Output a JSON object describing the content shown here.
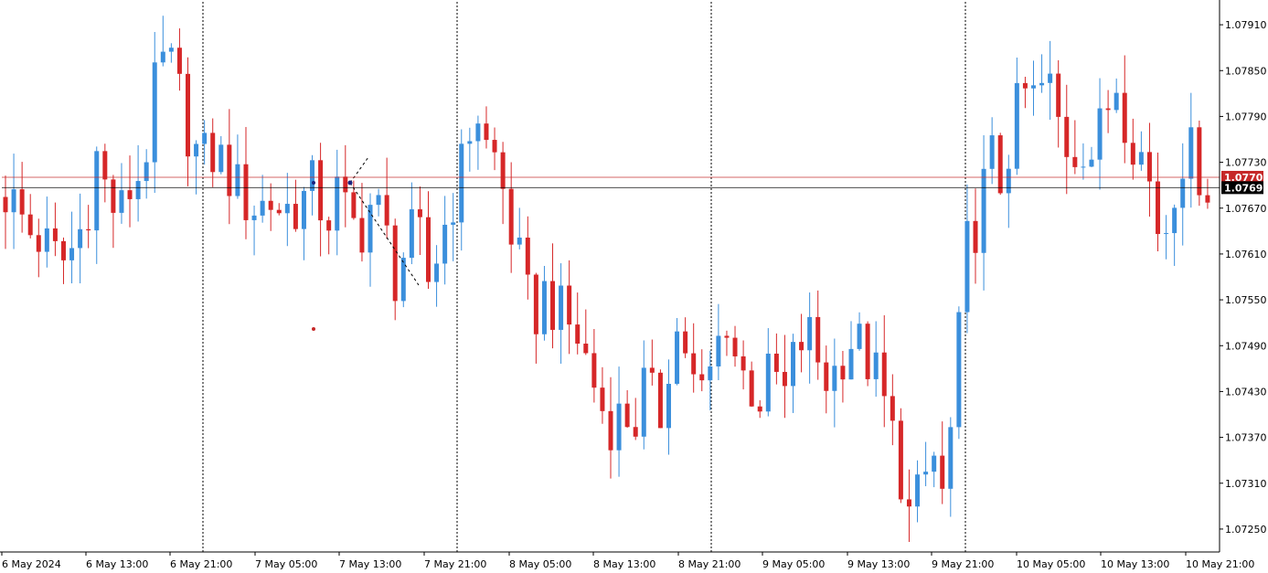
{
  "chart_data": {
    "type": "candlestick",
    "ylim": [
      1.0722,
      1.0794
    ],
    "x_tick_labels": [
      "6 May 2024",
      "6 May 13:00",
      "6 May 21:00",
      "7 May 05:00",
      "7 May 13:00",
      "7 May 21:00",
      "8 May 05:00",
      "8 May 13:00",
      "8 May 21:00",
      "9 May 05:00",
      "9 May 13:00",
      "9 May 21:00",
      "10 May 05:00",
      "10 May 13:00",
      "10 May 21:00"
    ],
    "y_tick_labels": [
      "1.07910",
      "1.07850",
      "1.07790",
      "1.07730",
      "1.07670",
      "1.07610",
      "1.07550",
      "1.07490",
      "1.07430",
      "1.07370",
      "1.07310",
      "1.07250"
    ],
    "y_tick_values": [
      1.0791,
      1.0785,
      1.0779,
      1.0773,
      1.0767,
      1.0761,
      1.0755,
      1.0749,
      1.0743,
      1.0737,
      1.0731,
      1.0725
    ],
    "grid": "vertical dotted separators at day sessions",
    "price_lines": [
      {
        "label": "1.07708",
        "value": 1.07708,
        "color": "#c62828"
      },
      {
        "label": "1.07698",
        "value": 1.07698,
        "color": "#000000"
      }
    ],
    "up_color": "#3b8fdc",
    "down_color": "#d62728",
    "anchors": [
      [
        1.0769,
        1.0767,
        1.0764,
        1.0763,
        1.0761,
        1.076,
        1.0762,
        1.0766,
        1.0774,
        1.0768,
        1.0766,
        1.077,
        1.0772,
        1.0782,
        1.0787,
        1.0783,
        1.0777,
        1.0773,
        1.0774,
        1.0773,
        1.077,
        1.0768,
        1.0767,
        1.0768,
        1.0767
      ],
      [
        1.0767,
        1.0768,
        1.077,
        1.0765,
        1.0769,
        1.0765,
        1.0764,
        1.0768,
        1.0765,
        1.0758,
        1.0762,
        1.0764,
        1.0757,
        1.0763,
        1.0768,
        1.0773,
        1.0781,
        1.0775,
        1.0773,
        1.0765,
        1.0759,
        1.0752,
        1.0756,
        1.0754,
        1.0752
      ],
      [
        1.075,
        1.0746,
        1.0741,
        1.0739,
        1.074,
        1.0739,
        1.0745,
        1.0738,
        1.0748,
        1.0752,
        1.0744,
        1.0742,
        1.0748,
        1.0753,
        1.0746,
        1.0744,
        1.0742,
        1.0746,
        1.0742,
        1.0748,
        1.0751,
        1.0747,
        1.0744,
        1.0748,
        1.075
      ],
      [
        1.0748,
        1.0745,
        1.074,
        1.0734,
        1.0726,
        1.073,
        1.0735,
        1.0728,
        1.0745,
        1.0762,
        1.0766,
        1.0774,
        1.077,
        1.0778,
        1.0782,
        1.0781,
        1.0784,
        1.0778,
        1.0774,
        1.0776,
        1.0774,
        1.0779,
        1.0784,
        1.0778,
        1.0775
      ],
      [
        1.077,
        1.0762,
        1.077,
        1.0775,
        1.0773,
        1.077
      ]
    ]
  }
}
